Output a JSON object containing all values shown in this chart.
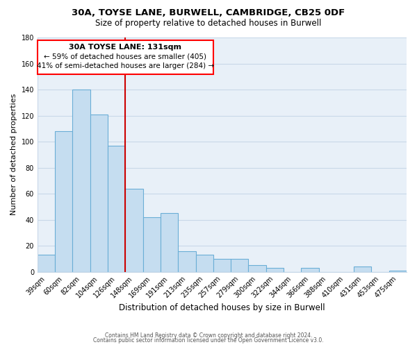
{
  "title1": "30A, TOYSE LANE, BURWELL, CAMBRIDGE, CB25 0DF",
  "title2": "Size of property relative to detached houses in Burwell",
  "xlabel": "Distribution of detached houses by size in Burwell",
  "ylabel": "Number of detached properties",
  "bar_labels": [
    "39sqm",
    "60sqm",
    "82sqm",
    "104sqm",
    "126sqm",
    "148sqm",
    "169sqm",
    "191sqm",
    "213sqm",
    "235sqm",
    "257sqm",
    "279sqm",
    "300sqm",
    "322sqm",
    "344sqm",
    "366sqm",
    "388sqm",
    "410sqm",
    "431sqm",
    "453sqm",
    "475sqm"
  ],
  "bar_values": [
    13,
    108,
    140,
    121,
    97,
    64,
    42,
    45,
    16,
    13,
    10,
    10,
    5,
    3,
    0,
    3,
    0,
    0,
    4,
    0,
    1
  ],
  "bar_color": "#c5ddf0",
  "bar_edge_color": "#6aaed6",
  "highlight_line_color": "#cc0000",
  "ylim": [
    0,
    180
  ],
  "yticks": [
    0,
    20,
    40,
    60,
    80,
    100,
    120,
    140,
    160,
    180
  ],
  "annotation_title": "30A TOYSE LANE: 131sqm",
  "annotation_line1": "← 59% of detached houses are smaller (405)",
  "annotation_line2": "41% of semi-detached houses are larger (284) →",
  "footer1": "Contains HM Land Registry data © Crown copyright and database right 2024.",
  "footer2": "Contains public sector information licensed under the Open Government Licence v3.0.",
  "background_color": "#ffffff",
  "plot_bg_color": "#e8f0f8",
  "grid_color": "#c8d8e8"
}
